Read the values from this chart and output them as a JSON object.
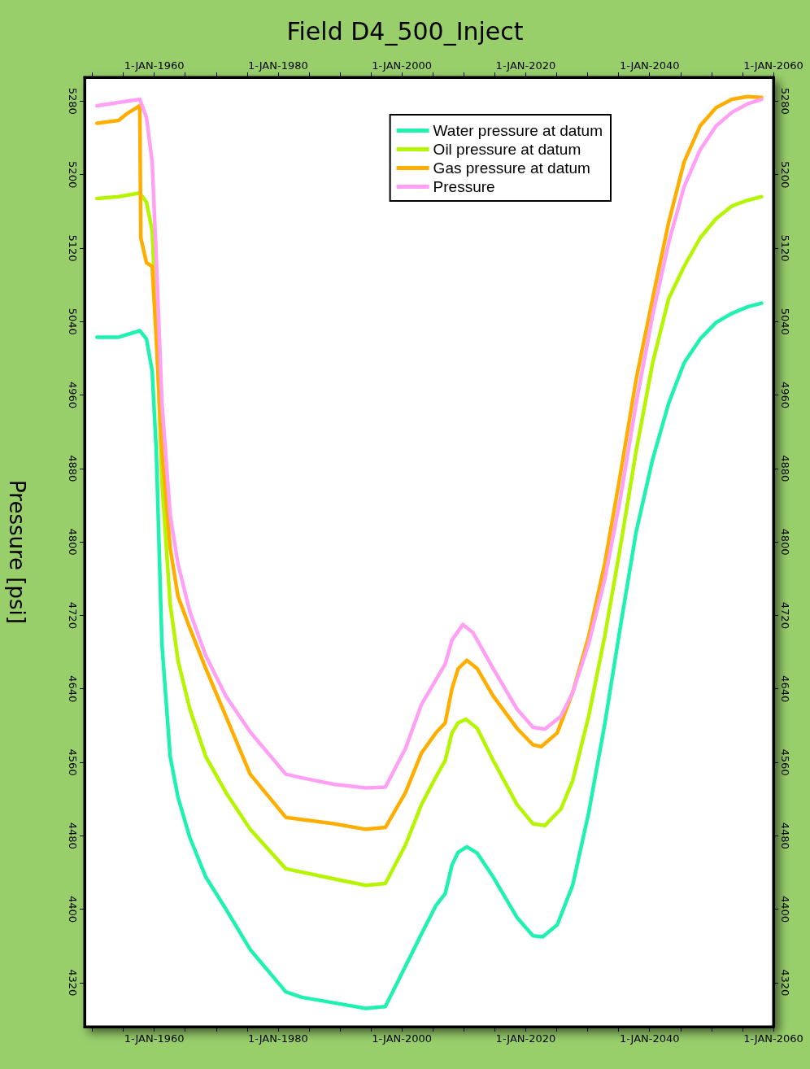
{
  "chart_data": {
    "type": "line",
    "title": "Field D4_500_Inject",
    "ylabel": "Pressure [psi]",
    "xlim": [
      "1948-10",
      "2060-01-01"
    ],
    "xticks": [
      {
        "value": "1950-01-01",
        "label": null
      },
      {
        "value": "1955-01-01",
        "label": null
      },
      {
        "value": "1960-01-01",
        "label": "1-JAN-1960"
      },
      {
        "value": "1965-01-01",
        "label": null
      },
      {
        "value": "1970-01-01",
        "label": null
      },
      {
        "value": "1975-01-01",
        "label": null
      },
      {
        "value": "1980-01-01",
        "label": "1-JAN-1980"
      },
      {
        "value": "1985-01-01",
        "label": null
      },
      {
        "value": "1990-01-01",
        "label": null
      },
      {
        "value": "1995-01-01",
        "label": null
      },
      {
        "value": "2000-01-01",
        "label": "1-JAN-2000"
      },
      {
        "value": "2005-01-01",
        "label": null
      },
      {
        "value": "2010-01-01",
        "label": null
      },
      {
        "value": "2015-01-01",
        "label": null
      },
      {
        "value": "2020-01-01",
        "label": "1-JAN-2020"
      },
      {
        "value": "2025-01-01",
        "label": null
      },
      {
        "value": "2030-01-01",
        "label": null
      },
      {
        "value": "2035-01-01",
        "label": null
      },
      {
        "value": "2040-01-01",
        "label": "1-JAN-2040"
      },
      {
        "value": "2045-01-01",
        "label": null
      },
      {
        "value": "2050-01-01",
        "label": null
      },
      {
        "value": "2055-01-01",
        "label": null
      },
      {
        "value": "2060-01-01",
        "label": "1-JAN-2060"
      }
    ],
    "x2lim": [
      "1948-10",
      "2060-01-01"
    ],
    "x2ticks": [
      {
        "value": "1950-01-01",
        "label": null
      },
      {
        "value": "1955-01-01",
        "label": null
      },
      {
        "value": "1960-01-01",
        "label": "1-JAN-1960"
      },
      {
        "value": "1965-01-01",
        "label": null
      },
      {
        "value": "1970-01-01",
        "label": null
      },
      {
        "value": "1975-01-01",
        "label": null
      },
      {
        "value": "1980-01-01",
        "label": "1-JAN-1980"
      },
      {
        "value": "1985-01-01",
        "label": null
      },
      {
        "value": "1990-01-01",
        "label": null
      },
      {
        "value": "1995-01-01",
        "label": null
      },
      {
        "value": "2000-01-01",
        "label": "1-JAN-2000"
      },
      {
        "value": "2005-01-01",
        "label": null
      },
      {
        "value": "2010-01-01",
        "label": null
      },
      {
        "value": "2015-01-01",
        "label": null
      },
      {
        "value": "2020-01-01",
        "label": "1-JAN-2020"
      },
      {
        "value": "2025-01-01",
        "label": null
      },
      {
        "value": "2030-01-01",
        "label": null
      },
      {
        "value": "2035-01-01",
        "label": null
      },
      {
        "value": "2040-01-01",
        "label": "1-JAN-2040"
      },
      {
        "value": "2045-01-01",
        "label": null
      },
      {
        "value": "2050-01-01",
        "label": null
      },
      {
        "value": "2055-01-01",
        "label": null
      },
      {
        "value": "2060-01-01",
        "label": "1-JAN-2060"
      }
    ],
    "ylim": [
      4272,
      5306
    ],
    "yticks": [
      4320,
      4400,
      4480,
      4560,
      4640,
      4720,
      4800,
      4880,
      4960,
      5040,
      5120,
      5200,
      5280
    ],
    "y2lim": [
      4272,
      5306
    ],
    "y2ticks": [
      4320,
      4400,
      4480,
      4560,
      4640,
      4720,
      4800,
      4880,
      4960,
      5040,
      5120,
      5200,
      5280
    ],
    "grid": false,
    "legend": "top right",
    "marker": "none",
    "line_style": "solid",
    "series": [
      {
        "name": "Water pressure at datum",
        "color": "#1ff2b0",
        "x": [
          "1950-10",
          "1954-04",
          "1957-09",
          "1958-10",
          "1959-09",
          "1960-05",
          "1961-04",
          "1962-08",
          "1963-11",
          "1965-10",
          "1968-05",
          "1971-08",
          "1975-07",
          "1981-04",
          "1983-11",
          "1989-01",
          "1994-03",
          "1997-05",
          "2000-08",
          "2003-03",
          "2005-07",
          "2007-01",
          "2008-02",
          "2009-02",
          "2010-07",
          "2012-03",
          "2014-10",
          "2018-08",
          "2021-03",
          "2022-10",
          "2025-02",
          "2027-08",
          "2030-03",
          "2032-10",
          "2035-04",
          "2037-11",
          "2040-07",
          "2043-02",
          "2045-08",
          "2048-03",
          "2050-10",
          "2053-05",
          "2055-11",
          "2058-02"
        ],
        "values": [
          5023,
          5023,
          5030,
          5021,
          4986,
          4899,
          4688,
          4566,
          4522,
          4478,
          4435,
          4400,
          4356,
          4310,
          4304,
          4298,
          4292,
          4294,
          4338,
          4373,
          4404,
          4417,
          4448,
          4462,
          4468,
          4461,
          4435,
          4391,
          4371,
          4370,
          4383,
          4426,
          4505,
          4601,
          4706,
          4811,
          4890,
          4951,
          4995,
          5021,
          5039,
          5049,
          5056,
          5060
        ]
      },
      {
        "name": "Oil pressure at datum",
        "color": "#b6f500",
        "x": [
          "1950-10",
          "1954-04",
          "1957-09",
          "1958-10",
          "1959-09",
          "1960-05",
          "1961-04",
          "1962-08",
          "1963-11",
          "1965-10",
          "1968-05",
          "1971-08",
          "1975-07",
          "1981-04",
          "1989-01",
          "1994-03",
          "1997-05",
          "2000-08",
          "2003-03",
          "2005-07",
          "2007-01",
          "2008-02",
          "2009-02",
          "2010-05",
          "2012-03",
          "2014-10",
          "2018-08",
          "2021-03",
          "2023-02",
          "2025-09",
          "2027-08",
          "2030-03",
          "2032-10",
          "2035-04",
          "2037-11",
          "2040-07",
          "2043-02",
          "2045-08",
          "2048-03",
          "2050-10",
          "2053-05",
          "2055-11",
          "2058-02"
        ],
        "values": [
          5174,
          5176,
          5180,
          5170,
          5139,
          5039,
          4864,
          4732,
          4671,
          4618,
          4566,
          4527,
          4487,
          4444,
          4433,
          4426,
          4428,
          4470,
          4514,
          4544,
          4562,
          4592,
          4603,
          4607,
          4597,
          4562,
          4514,
          4493,
          4491,
          4509,
          4540,
          4610,
          4697,
          4793,
          4899,
          4995,
          5065,
          5100,
          5131,
          5152,
          5166,
          5172,
          5176
        ]
      },
      {
        "name": "Gas pressure at datum",
        "color": "#ffae00",
        "x": [
          "1950-10",
          "1953-01",
          "1954-04",
          "1955-07",
          "1957-09",
          "1957-11",
          "1958-10",
          "1959-09",
          "1960-05",
          "1961-04",
          "1962-08",
          "1963-11",
          "1965-10",
          "1968-05",
          "1971-08",
          "1975-07",
          "1981-04",
          "1989-01",
          "1994-03",
          "1997-05",
          "2000-08",
          "2003-03",
          "2005-07",
          "2007-01",
          "2008-02",
          "2009-02",
          "2010-07",
          "2012-03",
          "2014-10",
          "2018-08",
          "2021-03",
          "2022-07",
          "2025-02",
          "2027-08",
          "2030-03",
          "2032-10",
          "2035-04",
          "2037-11",
          "2040-07",
          "2043-02",
          "2045-08",
          "2048-03",
          "2050-10",
          "2053-05",
          "2055-11",
          "2058-02"
        ],
        "values": [
          5256,
          5258,
          5259,
          5266,
          5275,
          5131,
          5104,
          5100,
          5021,
          4899,
          4793,
          4741,
          4706,
          4662,
          4610,
          4547,
          4500,
          4493,
          4487,
          4489,
          4527,
          4570,
          4592,
          4603,
          4640,
          4662,
          4671,
          4662,
          4632,
          4597,
          4579,
          4577,
          4592,
          4636,
          4697,
          4776,
          4872,
          4977,
          5065,
          5148,
          5214,
          5253,
          5273,
          5282,
          5285,
          5284
        ]
      },
      {
        "name": "Pressure",
        "color": "#ffa0f5",
        "x": [
          "1950-10",
          "1957-09",
          "1958-10",
          "1959-09",
          "1960-05",
          "1961-04",
          "1962-08",
          "1963-11",
          "1965-10",
          "1968-05",
          "1971-08",
          "1975-07",
          "1981-04",
          "1983-11",
          "1989-01",
          "1994-03",
          "1997-05",
          "2000-08",
          "2003-03",
          "2007-01",
          "2008-02",
          "2009-11",
          "2011-07",
          "2014-10",
          "2018-08",
          "2021-03",
          "2023-02",
          "2025-09",
          "2027-08",
          "2030-03",
          "2032-10",
          "2035-04",
          "2037-11",
          "2040-07",
          "2043-02",
          "2045-08",
          "2048-03",
          "2050-10",
          "2053-05",
          "2055-11",
          "2058-02"
        ],
        "values": [
          5275,
          5282,
          5262,
          5214,
          5109,
          4951,
          4829,
          4776,
          4724,
          4676,
          4632,
          4593,
          4547,
          4543,
          4536,
          4532,
          4533,
          4575,
          4623,
          4667,
          4693,
          4710,
          4701,
          4662,
          4618,
          4598,
          4596,
          4610,
          4636,
          4689,
          4759,
          4846,
          4951,
          5047,
          5126,
          5187,
          5227,
          5253,
          5268,
          5277,
          5282
        ]
      }
    ]
  }
}
